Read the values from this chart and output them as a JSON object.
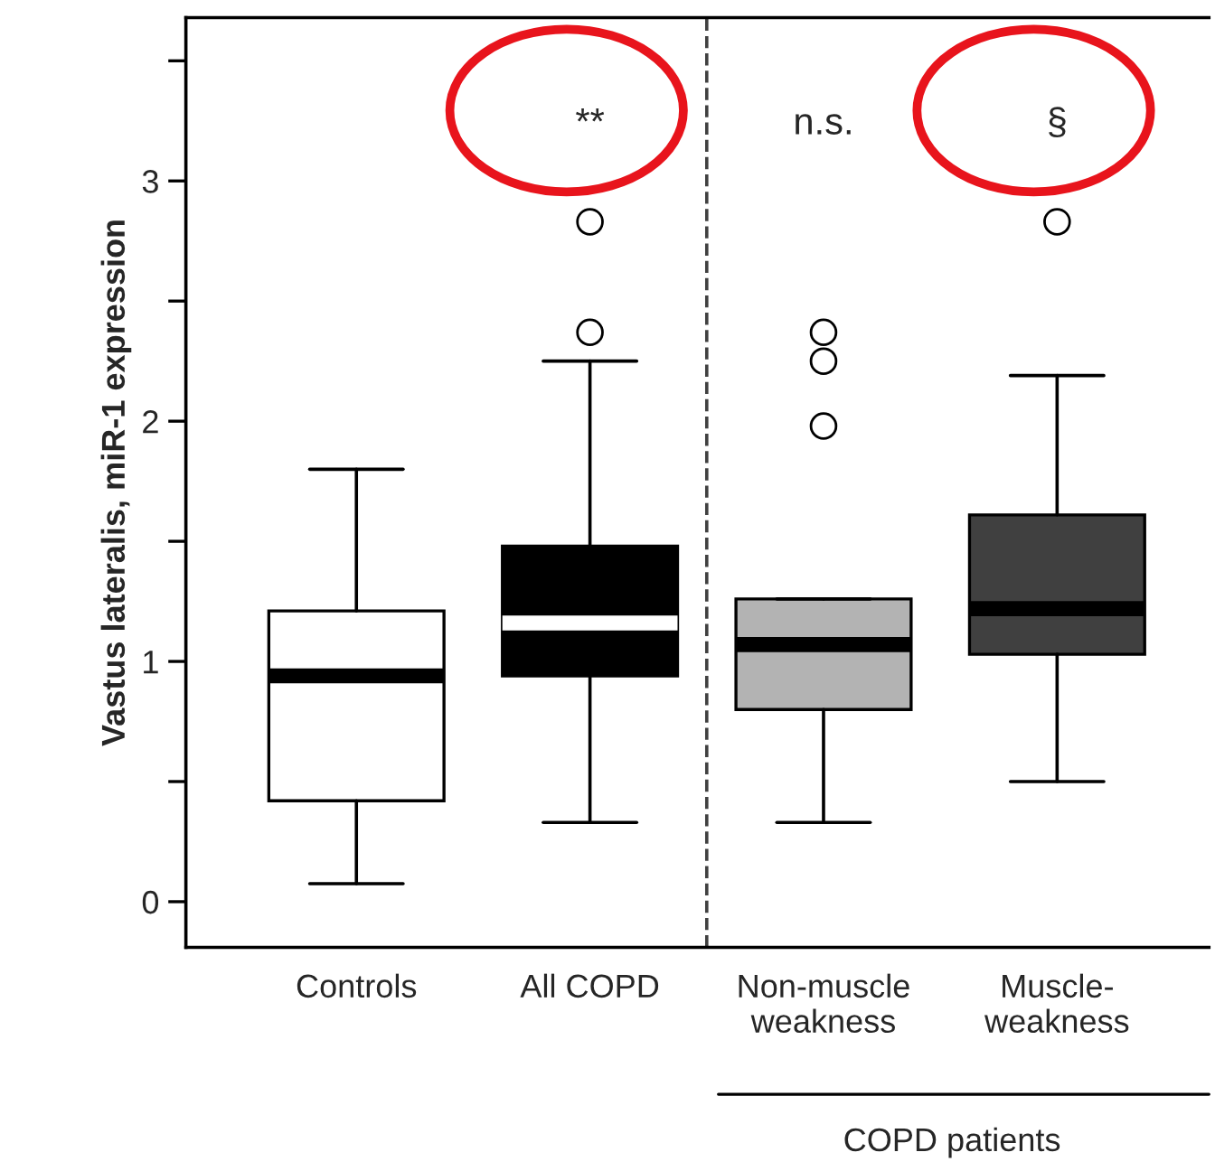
{
  "chart_data": {
    "type": "box",
    "ylabel": "Vastus lateralis, miR-1 expression",
    "categories": [
      "Controls",
      "All COPD",
      "Non-muscle\nweakness",
      "Muscle-\nweakness"
    ],
    "colors": [
      "#ffffff",
      "#000000",
      "#b3b3b3",
      "#404040"
    ],
    "boxes": [
      {
        "low": 0.075,
        "q1": 0.42,
        "median": 0.94,
        "q3": 1.21,
        "high": 1.8
      },
      {
        "low": 0.33,
        "q1": 0.94,
        "median": 1.16,
        "q3": 1.48,
        "high": 2.25,
        "outliers": [
          2.37,
          2.83
        ]
      },
      {
        "low": 0.33,
        "q1": 0.8,
        "median": 1.07,
        "q3": 1.26,
        "high": 1.26,
        "outliers": [
          1.98,
          2.25,
          2.37
        ]
      },
      {
        "low": 0.5,
        "q1": 1.03,
        "median": 1.22,
        "q3": 1.61,
        "high": 2.19,
        "outliers": [
          2.83
        ]
      }
    ],
    "ylim": [
      -0.19,
      3.68
    ],
    "yticks": [
      0,
      {
        "value": 0.5,
        "label": null
      },
      1,
      {
        "value": 1.5,
        "label": null
      },
      2,
      {
        "value": 2.5,
        "label": null
      },
      3,
      {
        "value": 3.5,
        "label": null
      }
    ],
    "annotations": [
      "**",
      "n.s.",
      "§",
      "COPD patients"
    ],
    "grid": false
  }
}
